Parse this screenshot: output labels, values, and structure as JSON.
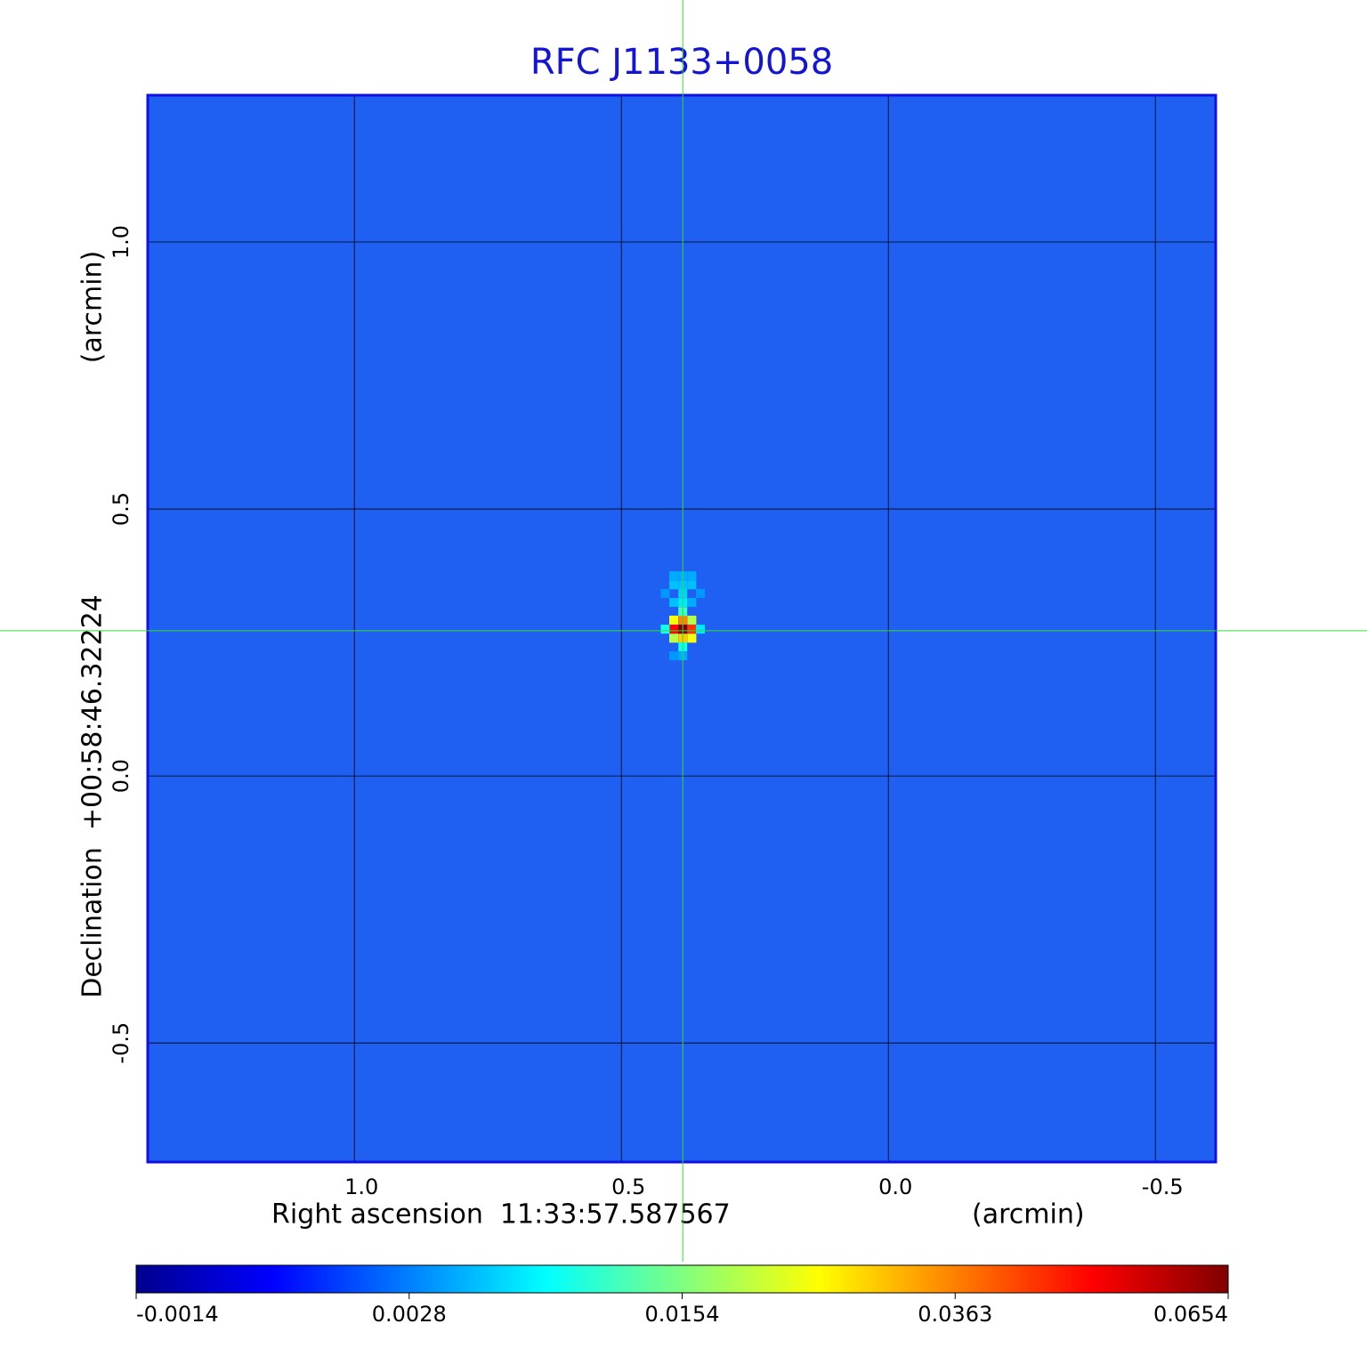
{
  "chart_data": {
    "type": "image",
    "title": "RFC J1133+0058",
    "xlabel": "Right ascension  11:33:57.587567",
    "xunit": "(arcmin)",
    "ylabel": "Declination  +00:58:46.32224",
    "yunit": "(arcmin)",
    "xlim": [
      1.387,
      -0.613
    ],
    "ylim": [
      -0.723,
      1.275
    ],
    "xticks": [
      {
        "value": 1,
        "label": "1.0"
      },
      0.5,
      {
        "value": 0,
        "label": "0.0"
      },
      -0.5
    ],
    "yticks": [
      {
        "value": 1,
        "label": "1.0"
      },
      0.5,
      {
        "value": 0,
        "label": "0.0"
      },
      -0.5
    ],
    "grid": true,
    "crosshair": {
      "x": 0.385,
      "y": 0.272,
      "color": "#33dd33"
    },
    "colormap": "jet",
    "colorbar_ticks": [
      -0.0014,
      0.0028,
      0.0154,
      0.0363,
      0.0654
    ],
    "pixels": {
      "x": [
        0.385,
        0.402,
        0.368,
        0.385,
        0.385,
        0.402,
        0.368,
        0.402,
        0.368,
        0.385,
        0.385,
        0.418,
        0.352,
        0.402,
        0.385,
        0.368,
        0.402,
        0.385,
        0.368,
        0.385,
        0.402,
        0.368,
        0.385,
        0.418,
        0.352,
        0.385,
        0.402
      ],
      "y": [
        0.275,
        0.275,
        0.275,
        0.292,
        0.258,
        0.292,
        0.292,
        0.258,
        0.258,
        0.308,
        0.242,
        0.275,
        0.275,
        0.358,
        0.358,
        0.358,
        0.375,
        0.375,
        0.375,
        0.342,
        0.325,
        0.325,
        0.325,
        0.342,
        0.342,
        0.225,
        0.225
      ],
      "values": [
        0.0654,
        0.05,
        0.045,
        0.036,
        0.03,
        0.025,
        0.02,
        0.02,
        0.025,
        0.012,
        0.01,
        0.01,
        0.008,
        0.006,
        0.006,
        0.006,
        0.005,
        0.005,
        0.005,
        0.007,
        0.006,
        0.005,
        0.008,
        0.004,
        0.004,
        0.005,
        0.004
      ]
    }
  }
}
